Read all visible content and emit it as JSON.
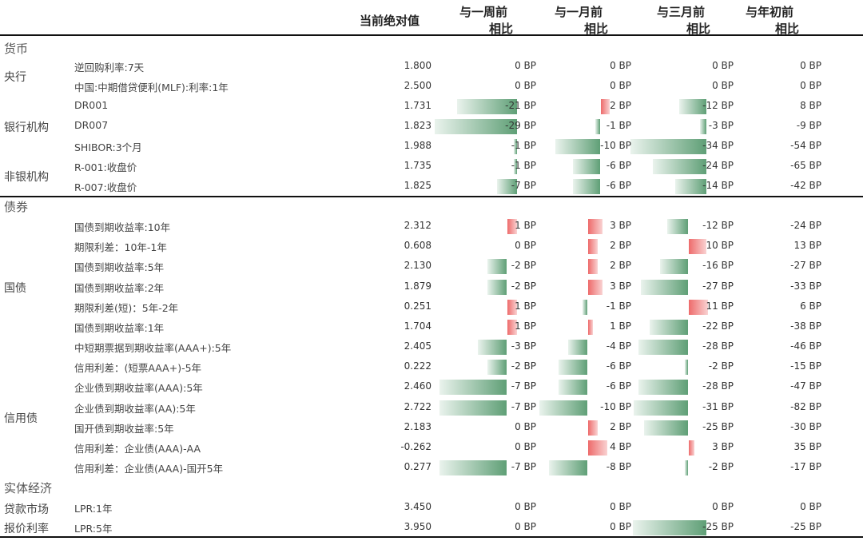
{
  "header": {
    "current_value": "当前绝对值",
    "week": [
      "与一周前",
      "相比"
    ],
    "month": [
      "与一月前",
      "相比"
    ],
    "three_month": [
      "与三月前",
      "相比"
    ],
    "ytd": [
      "与年初前",
      "相比"
    ]
  },
  "colors": {
    "negative_bar": "#5f9f76",
    "positive_bar": "#ee6b6b"
  },
  "sections": [
    {
      "title": "货币",
      "groups": [
        {
          "label": "央行",
          "rows": [
            0,
            1
          ]
        },
        {
          "label": "银行机构",
          "rows": [
            2,
            3,
            4
          ]
        },
        {
          "label": "非银机构",
          "rows": [
            5,
            6
          ]
        }
      ],
      "rows": [
        {
          "label": "逆回购利率:7天",
          "value": "1.800",
          "week": "0 BP",
          "month": "0 BP",
          "three_month": "0 BP",
          "ytd": "0 BP"
        },
        {
          "label": "中国:中期借贷便利(MLF):利率:1年",
          "value": "2.500",
          "week": "0 BP",
          "month": "0 BP",
          "three_month": "0 BP",
          "ytd": "0 BP"
        },
        {
          "label": "DR001",
          "value": "1.731",
          "week": "-21 BP",
          "month": "2 BP",
          "three_month": "-12 BP",
          "ytd": "8 BP"
        },
        {
          "label": "DR007",
          "value": "1.823",
          "week": "-29 BP",
          "month": "-1 BP",
          "three_month": "-3 BP",
          "ytd": "-9 BP"
        },
        {
          "label": "SHIBOR:3个月",
          "value": "1.988",
          "week": "-1 BP",
          "month": "-10 BP",
          "three_month": "-34 BP",
          "ytd": "-54 BP"
        },
        {
          "label": "R-001:收盘价",
          "value": "1.735",
          "week": "-1 BP",
          "month": "-6 BP",
          "three_month": "-24 BP",
          "ytd": "-65 BP"
        },
        {
          "label": "R-007:收盘价",
          "value": "1.825",
          "week": "-7 BP",
          "month": "-6 BP",
          "three_month": "-14 BP",
          "ytd": "-42 BP"
        }
      ]
    },
    {
      "title": "债券",
      "groups": [
        {
          "label": "国债",
          "rows": [
            0,
            1,
            2,
            3,
            4,
            5
          ]
        },
        {
          "label": "信用债",
          "rows": [
            6,
            7,
            8,
            9,
            10,
            11,
            12
          ]
        }
      ],
      "rows": [
        {
          "label": "国债到期收益率:10年",
          "value": "2.312",
          "week": "1 BP",
          "month": "3 BP",
          "three_month": "-12 BP",
          "ytd": "-24 BP"
        },
        {
          "label": "期限利差：10年-1年",
          "value": "0.608",
          "week": "0 BP",
          "month": "2 BP",
          "three_month": "10 BP",
          "ytd": "13 BP"
        },
        {
          "label": "国债到期收益率:5年",
          "value": "2.130",
          "week": "-2 BP",
          "month": "2 BP",
          "three_month": "-16 BP",
          "ytd": "-27 BP"
        },
        {
          "label": "国债到期收益率:2年",
          "value": "1.879",
          "week": "-2 BP",
          "month": "3 BP",
          "three_month": "-27 BP",
          "ytd": "-33 BP"
        },
        {
          "label": "期限利差(短)：5年-2年",
          "value": "0.251",
          "week": "1 BP",
          "month": "-1 BP",
          "three_month": "11 BP",
          "ytd": "6 BP"
        },
        {
          "label": "国债到期收益率:1年",
          "value": "1.704",
          "week": "1 BP",
          "month": "1 BP",
          "three_month": "-22 BP",
          "ytd": "-38 BP"
        },
        {
          "label": "中短期票据到期收益率(AAA+):5年",
          "value": "2.405",
          "week": "-3 BP",
          "month": "-4 BP",
          "three_month": "-28 BP",
          "ytd": "-46 BP"
        },
        {
          "label": "信用利差：(短票AAA+)-5年",
          "value": "0.222",
          "week": "-2 BP",
          "month": "-6 BP",
          "three_month": "-2 BP",
          "ytd": "-15 BP"
        },
        {
          "label": "企业债到期收益率(AAA):5年",
          "value": "2.460",
          "week": "-7 BP",
          "month": "-6 BP",
          "three_month": "-28 BP",
          "ytd": "-47 BP"
        },
        {
          "label": "企业债到期收益率(AA):5年",
          "value": "2.722",
          "week": "-7 BP",
          "month": "-10 BP",
          "three_month": "-31 BP",
          "ytd": "-82 BP"
        },
        {
          "label": "国开债到期收益率:5年",
          "value": "2.183",
          "week": "0 BP",
          "month": "2 BP",
          "three_month": "-25 BP",
          "ytd": "-30 BP"
        },
        {
          "label": "信用利差：企业债(AAA)-AA",
          "value": "-0.262",
          "week": "0 BP",
          "month": "4 BP",
          "three_month": "3 BP",
          "ytd": "35 BP"
        },
        {
          "label": "信用利差：企业债(AAA)-国开5年",
          "value": "0.277",
          "week": "-7 BP",
          "month": "-8 BP",
          "three_month": "-2 BP",
          "ytd": "-17 BP"
        }
      ]
    },
    {
      "title": "实体经济",
      "groups": [
        {
          "label": "贷款市场",
          "rows": [
            0
          ]
        },
        {
          "label": "报价利率",
          "rows": [
            1
          ]
        }
      ],
      "rows": [
        {
          "label": "LPR:1年",
          "value": "3.450",
          "week": "0 BP",
          "month": "0 BP",
          "three_month": "0 BP",
          "ytd": "0 BP"
        },
        {
          "label": "LPR:5年",
          "value": "3.950",
          "week": "0 BP",
          "month": "0 BP",
          "three_month": "-25 BP",
          "ytd": "-25 BP"
        }
      ]
    }
  ]
}
